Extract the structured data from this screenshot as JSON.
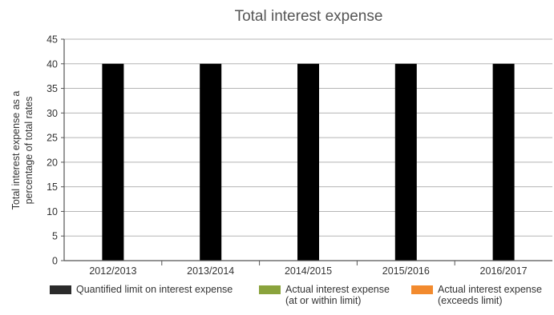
{
  "chart_data": {
    "type": "bar",
    "title": "Total interest expense",
    "xlabel": "",
    "ylabel_lines": [
      "Total interest expense as a",
      "percentage of total rates"
    ],
    "categories": [
      "2012/2013",
      "2013/2014",
      "2014/2015",
      "2015/2016",
      "2016/2017"
    ],
    "series": [
      {
        "name": "Quantified limit on interest expense",
        "values": [
          40,
          40,
          40,
          40,
          40
        ],
        "color": "#000000"
      }
    ],
    "ylim": [
      0,
      45
    ],
    "yticks": [
      0,
      5,
      10,
      15,
      20,
      25,
      30,
      35,
      40,
      45
    ],
    "grid": true,
    "legend_position": "bottom",
    "legend": [
      {
        "lines": [
          "Quantified limit on interest expense"
        ],
        "color": "#2b2b2b"
      },
      {
        "lines": [
          "Actual interest expense",
          "(at or within limit)"
        ],
        "color": "#8aa33c"
      },
      {
        "lines": [
          "Actual interest expense",
          "(exceeds limit)"
        ],
        "color": "#f28a2e"
      }
    ]
  }
}
